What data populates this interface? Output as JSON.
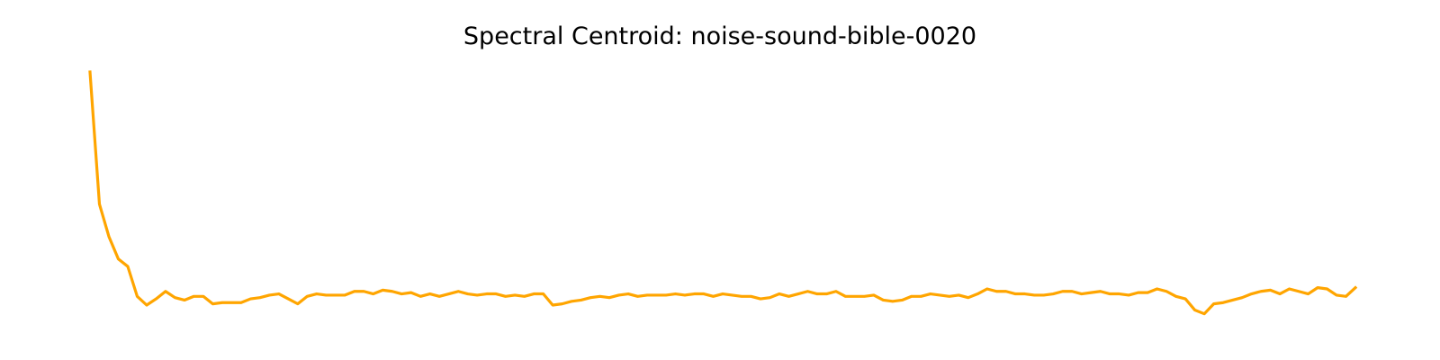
{
  "chart_data": {
    "type": "line",
    "title": "Spectral Centroid: noise-sound-bible-0020",
    "xlabel": "",
    "ylabel": "",
    "axes_visible": false,
    "grid": false,
    "legend": "none",
    "color": "#FFA500",
    "frame_index_range": [
      0,
      134
    ],
    "value_range": [
      0,
      100
    ],
    "series": [
      {
        "values": [
          100,
          47,
          34,
          25,
          22,
          10,
          6.5,
          9,
          12,
          9.5,
          8.5,
          10,
          10,
          7,
          7.5,
          7.5,
          7.5,
          9,
          9.5,
          10.5,
          11,
          9,
          7,
          10,
          11,
          10.5,
          10.5,
          10.5,
          12,
          12,
          11,
          12.5,
          12,
          11,
          11.5,
          10,
          11,
          10,
          11,
          12,
          11,
          10.5,
          11,
          11,
          10,
          10.5,
          10,
          11,
          11,
          6.5,
          7,
          8,
          8.5,
          9.5,
          10,
          9.5,
          10.5,
          11,
          10,
          10.5,
          10.5,
          10.5,
          11,
          10.5,
          11,
          11,
          10,
          11,
          10.5,
          10,
          10,
          9,
          9.5,
          11,
          10,
          11,
          12,
          11,
          11,
          12,
          10,
          10,
          10,
          10.5,
          8.5,
          8,
          8.5,
          10,
          10,
          11,
          10.5,
          10,
          10.5,
          9.5,
          11,
          13,
          12,
          12,
          11,
          11,
          10.5,
          10.5,
          11,
          12,
          12,
          11,
          11.5,
          12,
          11,
          11,
          10.5,
          11.5,
          11.5,
          13,
          12,
          10,
          9,
          4.5,
          3,
          7,
          7.5,
          8.5,
          9.5,
          11,
          12,
          12.5,
          11,
          13,
          12,
          11,
          13.5,
          13,
          10.5,
          10,
          13.5
        ]
      }
    ]
  }
}
